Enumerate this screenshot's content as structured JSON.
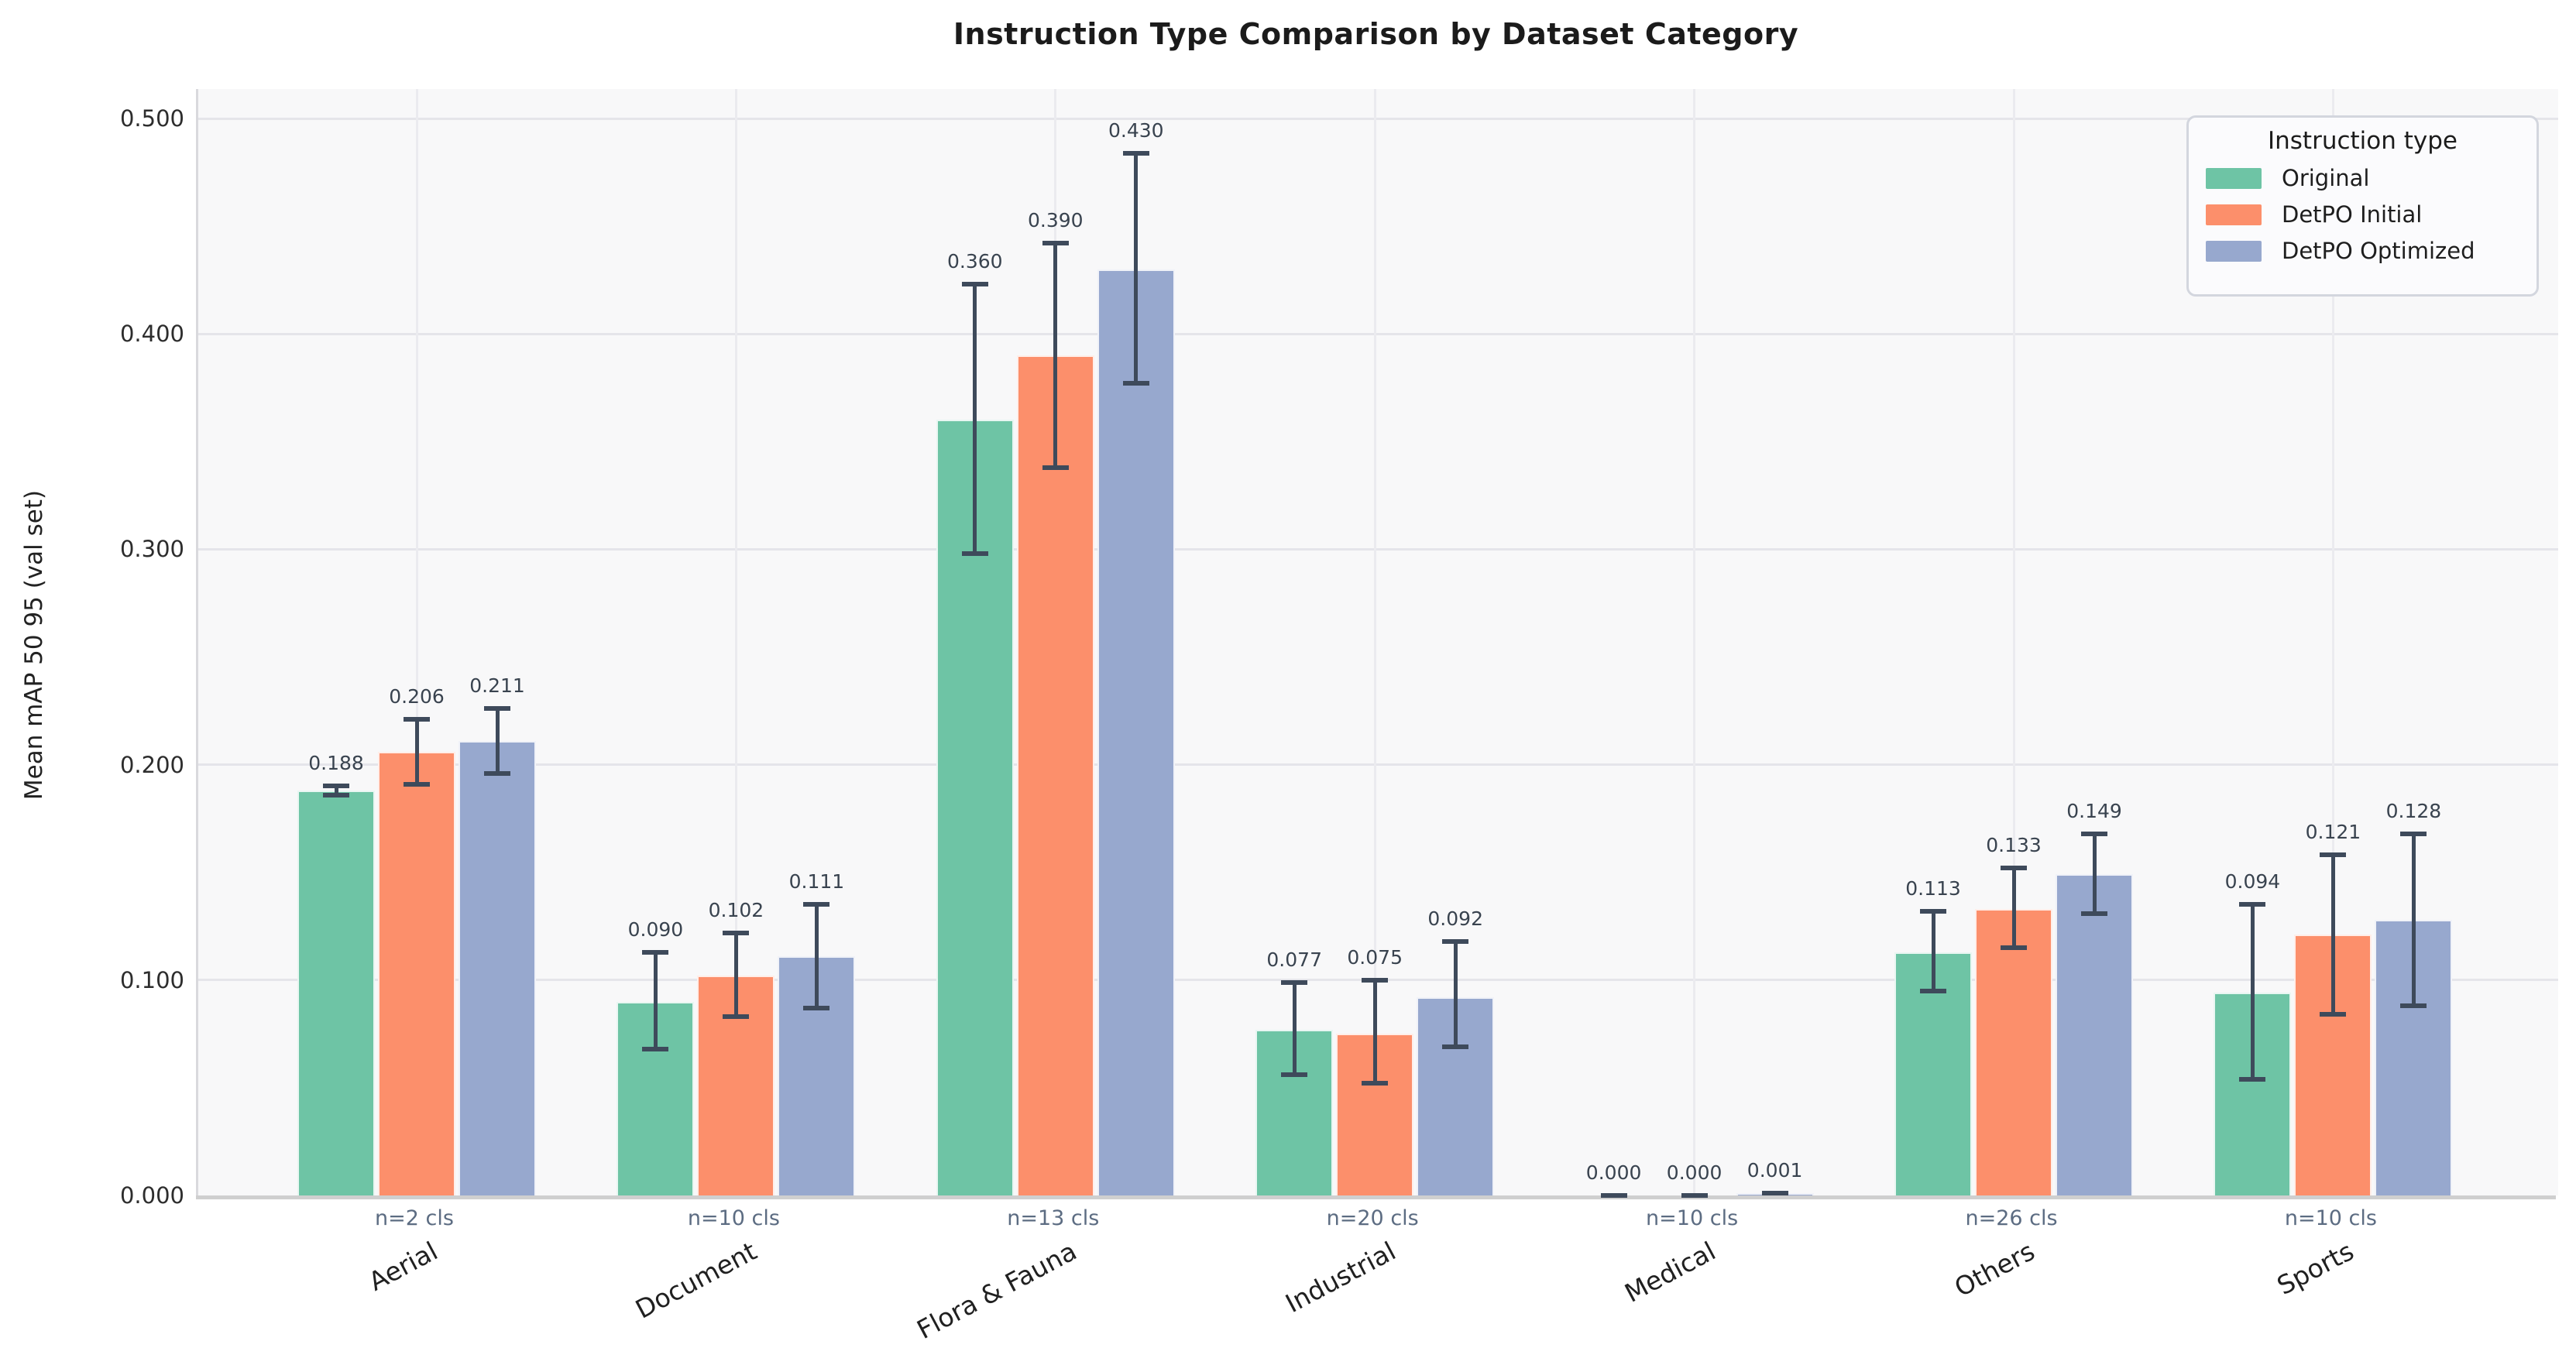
{
  "title": "Instruction Type Comparison by Dataset Category",
  "y_axis": {
    "label": "Mean mAP 50 95 (val set)",
    "ticks": [
      {
        "value": 0.0,
        "label": "0.000"
      },
      {
        "value": 0.1,
        "label": "0.100"
      },
      {
        "value": 0.2,
        "label": "0.200"
      },
      {
        "value": 0.3,
        "label": "0.300"
      },
      {
        "value": 0.4,
        "label": "0.400"
      },
      {
        "value": 0.5,
        "label": "0.500"
      }
    ]
  },
  "legend": {
    "title": "Instruction type",
    "items": [
      {
        "label": "Original",
        "color": "#6ec4a5"
      },
      {
        "label": "DetPO Initial",
        "color": "#fc8f6b"
      },
      {
        "label": "DetPO Optimized",
        "color": "#97a8ce"
      }
    ]
  },
  "chart_data": {
    "type": "bar",
    "title": "Instruction Type Comparison by Dataset Category",
    "xlabel": "",
    "ylabel": "Mean mAP 50 95 (val set)",
    "ylim": [
      0,
      0.5
    ],
    "grid": true,
    "legend_position": "upper right",
    "categories": [
      "Aerial",
      "Document",
      "Flora & Fauna",
      "Industrial",
      "Medical",
      "Others",
      "Sports"
    ],
    "class_counts": [
      "n=2 cls",
      "n=10 cls",
      "n=13 cls",
      "n=20 cls",
      "n=10 cls",
      "n=26 cls",
      "n=10 cls"
    ],
    "series": [
      {
        "name": "Original",
        "color": "#6ec4a5",
        "values": [
          0.188,
          0.09,
          0.36,
          0.077,
          0.0,
          0.113,
          0.094
        ],
        "err_low": [
          0.186,
          0.068,
          0.298,
          0.056,
          0.0,
          0.095,
          0.054
        ],
        "err_high": [
          0.19,
          0.113,
          0.423,
          0.099,
          0.0,
          0.132,
          0.135
        ]
      },
      {
        "name": "DetPO Initial",
        "color": "#fc8f6b",
        "values": [
          0.206,
          0.102,
          0.39,
          0.075,
          0.0,
          0.133,
          0.121
        ],
        "err_low": [
          0.191,
          0.083,
          0.338,
          0.052,
          0.0,
          0.115,
          0.084
        ],
        "err_high": [
          0.221,
          0.122,
          0.442,
          0.1,
          0.0,
          0.152,
          0.158
        ]
      },
      {
        "name": "DetPO Optimized",
        "color": "#97a8ce",
        "values": [
          0.211,
          0.111,
          0.43,
          0.092,
          0.001,
          0.149,
          0.128
        ],
        "err_low": [
          0.196,
          0.087,
          0.377,
          0.069,
          0.001,
          0.131,
          0.088
        ],
        "err_high": [
          0.226,
          0.135,
          0.484,
          0.118,
          0.001,
          0.168,
          0.168
        ]
      }
    ]
  },
  "colors": {
    "error_bar": "#3e4a5b",
    "axes_background": "#f8f8f9",
    "h_gridline": "#e5e5ea",
    "v_gridline": "#ebebef"
  }
}
